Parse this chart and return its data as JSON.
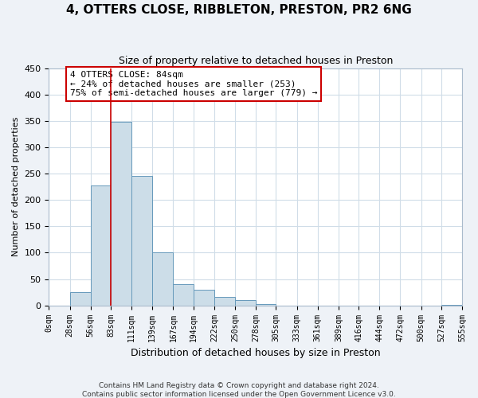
{
  "title": "4, OTTERS CLOSE, RIBBLETON, PRESTON, PR2 6NG",
  "subtitle": "Size of property relative to detached houses in Preston",
  "xlabel": "Distribution of detached houses by size in Preston",
  "ylabel": "Number of detached properties",
  "footnote1": "Contains HM Land Registry data © Crown copyright and database right 2024.",
  "footnote2": "Contains public sector information licensed under the Open Government Licence v3.0.",
  "bar_edges": [
    0,
    28,
    56,
    83,
    111,
    139,
    167,
    194,
    222,
    250,
    278,
    305,
    333,
    361,
    389,
    416,
    444,
    472,
    500,
    527,
    555
  ],
  "bar_heights": [
    0,
    25,
    228,
    348,
    246,
    101,
    40,
    30,
    16,
    10,
    2,
    0,
    0,
    0,
    0,
    0,
    0,
    0,
    0,
    1
  ],
  "tick_labels": [
    "0sqm",
    "28sqm",
    "56sqm",
    "83sqm",
    "111sqm",
    "139sqm",
    "167sqm",
    "194sqm",
    "222sqm",
    "250sqm",
    "278sqm",
    "305sqm",
    "333sqm",
    "361sqm",
    "389sqm",
    "416sqm",
    "444sqm",
    "472sqm",
    "500sqm",
    "527sqm",
    "555sqm"
  ],
  "bar_color": "#ccdde8",
  "bar_edge_color": "#6699bb",
  "grid_color": "#d0dde8",
  "annotation_box_color": "#cc0000",
  "vline_color": "#cc0000",
  "vline_x": 83,
  "annotation_text": "4 OTTERS CLOSE: 84sqm\n← 24% of detached houses are smaller (253)\n75% of semi-detached houses are larger (779) →",
  "ylim": [
    0,
    450
  ],
  "yticks": [
    0,
    50,
    100,
    150,
    200,
    250,
    300,
    350,
    400,
    450
  ],
  "bg_color": "#eef2f7",
  "plot_bg_color": "#ffffff",
  "title_fontsize": 11,
  "subtitle_fontsize": 9,
  "xlabel_fontsize": 9,
  "ylabel_fontsize": 8,
  "tick_fontsize": 7,
  "footnote_fontsize": 6.5
}
